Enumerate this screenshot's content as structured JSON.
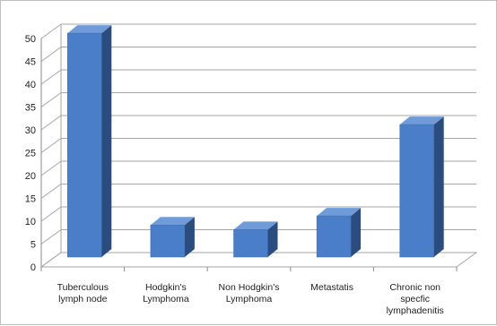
{
  "chart_data": {
    "type": "bar",
    "title": "",
    "xlabel": "",
    "ylabel": "",
    "categories": [
      [
        "Tuberculous",
        "lymph node"
      ],
      [
        "Hodgkin's",
        "Lymphoma"
      ],
      [
        "Non Hodgkin's",
        "Lymphoma"
      ],
      [
        "Metastatis"
      ],
      [
        "Chronic non",
        "specfic",
        "lymphadenitis"
      ]
    ],
    "values": [
      49,
      7,
      6,
      9,
      29
    ],
    "ylim": [
      0,
      50
    ],
    "yticks": [
      0,
      5,
      10,
      15,
      20,
      25,
      30,
      35,
      40,
      45,
      50
    ],
    "grid": true,
    "legend": "none",
    "bar_colors": {
      "front": "#4a7ec8",
      "side": "#2b4c7e",
      "top": "#6f9bd8",
      "edge": "#3a68a8"
    },
    "grid_color": "#a6a6a6",
    "axis_color": "#8c8c8c"
  }
}
